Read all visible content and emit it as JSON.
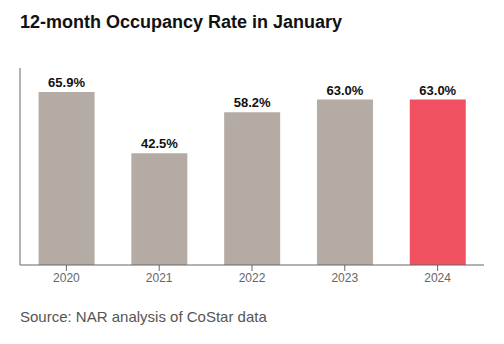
{
  "chart_data": {
    "type": "bar",
    "title": "12-month Occupancy Rate in January",
    "categories": [
      "2020",
      "2021",
      "2022",
      "2023",
      "2024"
    ],
    "values": [
      65.9,
      42.5,
      58.2,
      63.0,
      63.0
    ],
    "value_labels": [
      "65.9%",
      "42.5%",
      "58.2%",
      "63.0%",
      "63.0%"
    ],
    "colors": [
      "#b5aba5",
      "#b5aba5",
      "#b5aba5",
      "#b5aba5",
      "#f05060"
    ],
    "ylim": [
      0,
      75
    ],
    "data_labels": true,
    "tick_labels": "x",
    "grid": false,
    "annotations": [
      "Source: NAR analysis of CoStar data"
    ]
  }
}
